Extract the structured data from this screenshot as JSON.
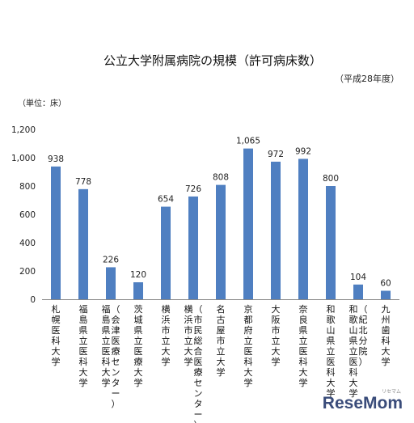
{
  "chart_data": {
    "type": "bar",
    "title": "公立大学附属病院の規模（許可病床数）",
    "subtitle": "（平成28年度）",
    "unit_label": "（単位：床）",
    "ylim": [
      0,
      1200
    ],
    "y_ticks": [
      "0",
      "200",
      "400",
      "600",
      "800",
      "1,000",
      "1,200"
    ],
    "y_tick_values": [
      0,
      200,
      400,
      600,
      800,
      1000,
      1200
    ],
    "grid": false,
    "bar_color": "#4f7fc1",
    "categories": [
      [
        "札幌医科大学"
      ],
      [
        "福島県立医科大学"
      ],
      [
        "福島県立医科大学",
        "（会津医療センター）"
      ],
      [
        "茨城県立医療大学"
      ],
      [
        "横浜市立大学"
      ],
      [
        "横浜市立大学",
        "（市民総合医療センター）"
      ],
      [
        "名古屋市立大学"
      ],
      [
        "京都府立医科大学"
      ],
      [
        "大阪市立大学"
      ],
      [
        "奈良県立医科大学"
      ],
      [
        "和歌山県立医科大学"
      ],
      [
        "和歌山県立医科大学",
        "（紀北分院）"
      ],
      [
        "九州歯科大学"
      ]
    ],
    "values": [
      938,
      778,
      226,
      120,
      654,
      726,
      808,
      1065,
      972,
      992,
      800,
      104,
      60
    ],
    "data_labels": [
      "938",
      "778",
      "226",
      "120",
      "654",
      "726",
      "808",
      "1,065",
      "972",
      "992",
      "800",
      "104",
      "60"
    ]
  },
  "logo": {
    "text_main": "ReseMom",
    "ruby": "リセマム"
  }
}
